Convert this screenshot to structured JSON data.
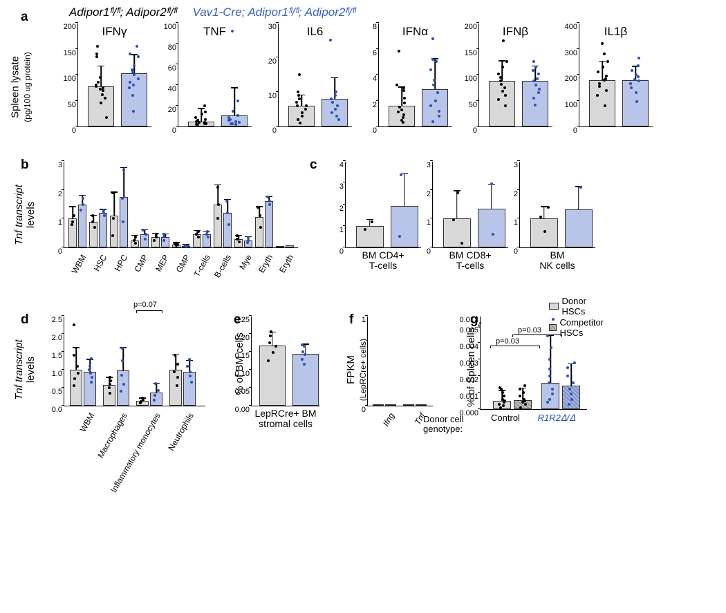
{
  "legend_top": {
    "g1": "Adipor1ᶠˡ/ᶠˡ; Adipor2ᶠˡ/ᶠˡ",
    "g2": "Vav1-Cre; Adipor1ᶠˡ/ᶠˡ; Adipor2ᶠˡ/ᶠˡ"
  },
  "colors": {
    "ctrl_bar": "#d8d8d8",
    "ko_bar": "#b8c5e8",
    "ctrl_dot": "#000000",
    "ko_dot": "#2a4fb9",
    "axis": "#000000"
  },
  "panel_a": {
    "label": "a",
    "ylabel_line1": "Spleen lysate",
    "ylabel_line2": "(pg/100 ug protein)",
    "charts": [
      {
        "title": "IFNγ",
        "ymax": 200,
        "yticks": [
          "0",
          "50",
          "100",
          "150",
          "200"
        ],
        "ctrl_mean": 78,
        "ctrl_err": 38,
        "ko_mean": 103,
        "ko_err": 35,
        "ctrl_dots": [
          18,
          45,
          55,
          62,
          70,
          72,
          75,
          78,
          80,
          85,
          95,
          135,
          140,
          155
        ],
        "ko_dots": [
          30,
          60,
          75,
          80,
          85,
          92,
          100,
          105,
          110,
          118,
          135,
          140,
          155
        ]
      },
      {
        "title": "TNF",
        "ymax": 100,
        "yticks": [
          "0",
          "20",
          "40",
          "60",
          "80",
          "100"
        ],
        "ctrl_mean": 5,
        "ctrl_err": 12,
        "ko_mean": 11,
        "ko_err": 26,
        "ctrl_dots": [
          2,
          2,
          3,
          3,
          4,
          4,
          5,
          6,
          7,
          9,
          12,
          14,
          20
        ],
        "ko_dots": [
          2,
          3,
          3,
          4,
          5,
          6,
          7,
          9,
          11,
          15,
          25,
          92
        ]
      },
      {
        "title": "IL6",
        "ymax": 30,
        "yticks": [
          "0",
          "10",
          "20",
          "30"
        ],
        "ctrl_mean": 6,
        "ctrl_err": 3,
        "ko_mean": 8,
        "ko_err": 6,
        "ctrl_dots": [
          1,
          2,
          3,
          4,
          5,
          6,
          6,
          7,
          8,
          9,
          10,
          15
        ],
        "ko_dots": [
          2,
          3,
          4,
          5,
          6,
          7,
          8,
          9,
          10,
          25
        ]
      },
      {
        "title": "IFNα",
        "ymax": 8,
        "yticks": [
          "0",
          "2",
          "4",
          "6",
          "8"
        ],
        "ctrl_mean": 1.6,
        "ctrl_err": 1.4,
        "ko_mean": 2.9,
        "ko_err": 2.3,
        "ctrl_dots": [
          0.3,
          0.5,
          0.7,
          0.9,
          1.1,
          1.3,
          1.5,
          1.8,
          2.2,
          2.8,
          3.0,
          3.2,
          5.8
        ],
        "ko_dots": [
          0.4,
          0.8,
          1.2,
          1.6,
          2.0,
          2.6,
          3.2,
          3.6,
          4.4,
          5.0,
          5.2,
          6.8
        ]
      },
      {
        "title": "IFNβ",
        "ymax": 200,
        "yticks": [
          "0",
          "50",
          "100",
          "150",
          "200"
        ],
        "ctrl_mean": 88,
        "ctrl_err": 38,
        "ko_mean": 88,
        "ko_err": 28,
        "ctrl_dots": [
          40,
          52,
          60,
          68,
          75,
          82,
          88,
          95,
          102,
          115,
          125,
          165
        ],
        "ko_dots": [
          42,
          55,
          65,
          72,
          80,
          88,
          92,
          102,
          108,
          115,
          125
        ]
      },
      {
        "title": "IL1β",
        "ymax": 400,
        "yticks": [
          "0",
          "100",
          "200",
          "300",
          "400"
        ],
        "ctrl_mean": 180,
        "ctrl_err": 70,
        "ko_mean": 180,
        "ko_err": 50,
        "ctrl_dots": [
          80,
          120,
          140,
          155,
          165,
          178,
          185,
          195,
          210,
          230,
          250,
          280,
          320
        ],
        "ko_dots": [
          95,
          130,
          150,
          165,
          175,
          182,
          192,
          200,
          215,
          235,
          265
        ]
      }
    ]
  },
  "panel_b": {
    "label": "b",
    "ylabel": "Tnf transcript\nlevels",
    "ymax": 3,
    "yticks": [
      "0",
      "1",
      "2",
      "3"
    ],
    "categories": [
      "WBM",
      "HSC",
      "HPC",
      "CMP",
      "MEP",
      "GMP",
      "T-cells",
      "B-cells",
      "Mye",
      "Eryth"
    ],
    "pairs": [
      {
        "ctrl": 1.0,
        "ctrl_err": 0.4,
        "ko": 1.5,
        "ko_err": 0.3,
        "ctrl_dots": [
          0.8,
          0.9,
          1.1
        ],
        "ko_dots": [
          1.3,
          1.5,
          1.7
        ]
      },
      {
        "ctrl": 0.9,
        "ctrl_err": 0.2,
        "ko": 1.2,
        "ko_err": 0.1,
        "ctrl_dots": [
          0.7,
          0.9,
          1.1
        ],
        "ko_dots": [
          1.1,
          1.2,
          1.3
        ]
      },
      {
        "ctrl": 1.1,
        "ctrl_err": 0.8,
        "ko": 1.75,
        "ko_err": 1.0,
        "ctrl_dots": [
          0.4,
          1.0,
          1.9
        ],
        "ko_dots": [
          0.9,
          1.7,
          2.7
        ]
      },
      {
        "ctrl": 0.25,
        "ctrl_err": 0.15,
        "ko": 0.45,
        "ko_err": 0.15,
        "ctrl_dots": [
          0.15,
          0.25,
          0.35
        ],
        "ko_dots": [
          0.3,
          0.45,
          0.6
        ]
      },
      {
        "ctrl": 0.35,
        "ctrl_err": 0.12,
        "ko": 0.35,
        "ko_err": 0.1,
        "ctrl_dots": [
          0.25,
          0.35,
          0.45
        ],
        "ko_dots": [
          0.25,
          0.35,
          0.45
        ]
      },
      {
        "ctrl": 0.1,
        "ctrl_err": 0.05,
        "ko": 0.05,
        "ko_err": 0.03,
        "ctrl_dots": [
          0.07,
          0.1,
          0.13
        ],
        "ko_dots": [
          0.03,
          0.05,
          0.08
        ]
      },
      {
        "ctrl": 0.45,
        "ctrl_err": 0.12,
        "ko": 0.45,
        "ko_err": 0.1,
        "ctrl_dots": [
          0.35,
          0.45,
          0.55
        ],
        "ko_dots": [
          0.35,
          0.45,
          0.55
        ]
      },
      {
        "ctrl": 1.5,
        "ctrl_err": 0.65,
        "ko": 1.2,
        "ko_err": 0.45,
        "ctrl_dots": [
          1.0,
          1.5,
          2.1
        ],
        "ko_dots": [
          0.8,
          1.2,
          1.6
        ]
      },
      {
        "ctrl": 0.3,
        "ctrl_err": 0.1,
        "ko": 0.25,
        "ko_err": 0.1,
        "ctrl_dots": [
          0.2,
          0.3,
          0.4
        ],
        "ko_dots": [
          0.17,
          0.25,
          0.33
        ]
      },
      {
        "ctrl": 1.05,
        "ctrl_err": 0.35,
        "ko": 1.6,
        "ko_err": 0.15,
        "ctrl_dots": [
          0.7,
          1.1,
          1.4
        ],
        "ko_dots": [
          1.5,
          1.6,
          1.75
        ]
      }
    ],
    "extra": {
      "ctrl": 0.05,
      "ko": 0.08
    }
  },
  "panel_c": {
    "label": "c",
    "charts": [
      {
        "xlabel": "BM CD4+\nT-cells",
        "ymax": 4,
        "yticks": [
          "0",
          "1",
          "2",
          "3",
          "4"
        ],
        "ctrl": 1.0,
        "ctrl_err": 0.28,
        "ko": 1.92,
        "ko_err": 1.46,
        "ctrl_dots": [
          0.82,
          1.18
        ],
        "ko_dots": [
          0.5,
          3.35
        ]
      },
      {
        "xlabel": "BM CD8+\nT-cells",
        "ymax": 3,
        "yticks": [
          "0",
          "1",
          "2",
          "3"
        ],
        "ctrl": 1.0,
        "ctrl_err": 0.95,
        "ko": 1.35,
        "ko_err": 0.83,
        "ctrl_dots": [
          0.15,
          0.95,
          1.9
        ],
        "ko_dots": [
          0.45,
          2.2
        ]
      },
      {
        "xlabel": "BM\nNK cells",
        "ymax": 3,
        "yticks": [
          "0",
          "1",
          "2",
          "3"
        ],
        "ctrl": 1.0,
        "ctrl_err": 0.4,
        "ko": 1.32,
        "ko_err": 0.78,
        "ctrl_dots": [
          0.55,
          1.05,
          1.4
        ],
        "ko_dots": [
          2.1
        ]
      }
    ]
  },
  "panel_d": {
    "label": "d",
    "ylabel": "Tnf transcript\nlevels",
    "ymax": 2.5,
    "yticks": [
      "0.0",
      "0.5",
      "1.0",
      "1.5",
      "2.0",
      "2.5"
    ],
    "categories": [
      "WBM",
      "Macrophages",
      "Inflammatory\nmonocytes",
      "Neutrophils"
    ],
    "pairs": [
      {
        "ctrl": 1.0,
        "ctrl_err": 0.6,
        "ko": 0.95,
        "ko_err": 0.32,
        "ctrl_dots": [
          0.55,
          0.75,
          0.9,
          1.1,
          1.4,
          2.25
        ],
        "ko_dots": [
          0.65,
          0.78,
          0.9,
          1.0,
          1.1,
          1.3
        ]
      },
      {
        "ctrl": 0.57,
        "ctrl_err": 0.2,
        "ko": 0.98,
        "ko_err": 0.62,
        "ctrl_dots": [
          0.35,
          0.5,
          0.6,
          0.7,
          0.78
        ],
        "ko_dots": [
          0.4,
          0.6,
          0.85,
          1.25,
          1.6
        ]
      },
      {
        "ctrl": 0.14,
        "ctrl_err": 0.06,
        "ko": 0.37,
        "ko_err": 0.24,
        "ctrl_dots": [
          0.08,
          0.11,
          0.16,
          0.22
        ],
        "ko_dots": [
          0.15,
          0.28,
          0.42,
          0.62
        ]
      },
      {
        "ctrl": 1.0,
        "ctrl_err": 0.4,
        "ko": 0.95,
        "ko_err": 0.3,
        "ctrl_dots": [
          0.55,
          0.78,
          0.95,
          1.15,
          1.4
        ],
        "ko_dots": [
          0.65,
          0.82,
          0.95,
          1.1,
          1.28
        ]
      }
    ],
    "sig": "p=0.07"
  },
  "panel_e": {
    "label": "e",
    "ylabel": "% of BM cells",
    "xlabel": "LepRCre+ BM\nstromal cells",
    "ymax": 0.25,
    "yticks": [
      "0.00",
      "0.05",
      "0.10",
      "0.15",
      "0.20",
      "0.25"
    ],
    "ctrl": 0.168,
    "ctrl_err": 0.035,
    "ko": 0.145,
    "ko_err": 0.025,
    "ctrl_dots": [
      0.125,
      0.148,
      0.165,
      0.175,
      0.195,
      0.205
    ],
    "ko_dots": [
      0.115,
      0.128,
      0.142,
      0.15,
      0.165,
      0.17
    ]
  },
  "panel_f": {
    "label": "f",
    "ylabel": "FPKM\n(LepRCre+ cells)",
    "ymax": 1,
    "yticks": [
      "0",
      "1"
    ],
    "categories": [
      "Ifng",
      "Tnf"
    ],
    "values": [
      {
        "ctrl": 0.01,
        "ko": 0.01
      },
      {
        "ctrl": 0.01,
        "ko": 0.01
      }
    ]
  },
  "panel_g": {
    "label": "g",
    "ylabel": "% of Spleen cells",
    "ymax_low": 0.005,
    "ymax_high": 0.013,
    "yticks": [
      "0.000",
      "0.001",
      "0.002",
      "0.003",
      "0.004",
      "0.005",
      "0.013"
    ],
    "legend": {
      "donor": "Donor HSCs",
      "comp": "Competitor HSCs"
    },
    "xlabel_prefix": "Donor cell\ngenotype:",
    "categories": [
      "Control",
      "R1R2ᐃ/ᐃ"
    ],
    "category_colors": [
      "#000000",
      "#2a4fb9"
    ],
    "bars": [
      {
        "type": "donor",
        "val": 0.0005,
        "err": 0.0006,
        "dots": [
          0.0001,
          0.0002,
          0.0003,
          0.0004,
          0.0005,
          0.0006,
          0.0008,
          0.001,
          0.0013,
          0.0012
        ]
      },
      {
        "type": "comp",
        "val": 0.00055,
        "err": 0.0007,
        "dots": [
          0.0001,
          0.0003,
          0.0004,
          0.0005,
          0.0006,
          0.0008,
          0.001,
          0.0012,
          0.0014
        ]
      },
      {
        "type": "donor ko",
        "val": 0.0016,
        "err": 0.0028,
        "dots": [
          0.0004,
          0.0006,
          0.0009,
          0.0012,
          0.0016,
          0.002,
          0.0024,
          0.003,
          0.0037,
          0.0044,
          0.012
        ]
      },
      {
        "type": "comp ko",
        "val": 0.0014,
        "err": 0.0013,
        "dots": [
          0.0003,
          0.0006,
          0.0009,
          0.0012,
          0.0016,
          0.002,
          0.0025,
          0.0028
        ]
      }
    ],
    "sig": [
      {
        "text": "p=0.03",
        "from": 0,
        "to": 2
      },
      {
        "text": "p=0.03",
        "from": 1,
        "to": 3
      }
    ]
  }
}
